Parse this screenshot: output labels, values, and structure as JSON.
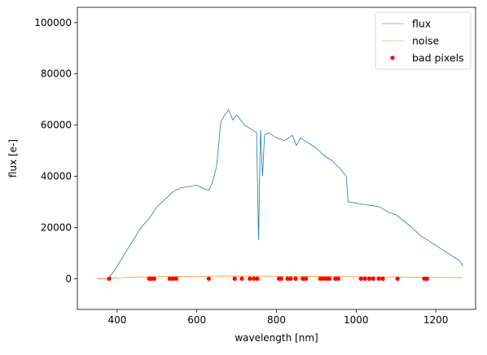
{
  "chart_data": {
    "type": "line",
    "title": "",
    "xlabel": "wavelength [nm]",
    "ylabel": "flux [e-]",
    "xlim": [
      300,
      1300
    ],
    "ylim": [
      -12000,
      106000
    ],
    "xticks": [
      400,
      600,
      800,
      1000,
      1200
    ],
    "yticks": [
      0,
      20000,
      40000,
      60000,
      80000,
      100000
    ],
    "xtick_labels": [
      "400",
      "600",
      "800",
      "1000",
      "1200"
    ],
    "ytick_labels": [
      "0",
      "20000",
      "40000",
      "60000",
      "80000",
      "100000"
    ],
    "grid": false,
    "legend_position": "top-right",
    "series": [
      {
        "name": "flux",
        "type": "line",
        "color": "#1f77b4",
        "x": [
          350,
          375,
          380,
          390,
          400,
          420,
          440,
          460,
          480,
          500,
          520,
          540,
          560,
          580,
          600,
          620,
          630,
          640,
          650,
          660,
          670,
          680,
          690,
          700,
          720,
          740,
          750,
          755,
          760,
          765,
          770,
          780,
          800,
          820,
          840,
          850,
          860,
          880,
          900,
          920,
          940,
          960,
          975,
          980,
          1000,
          1020,
          1040,
          1060,
          1080,
          1100,
          1120,
          1140,
          1160,
          1180,
          1200,
          1220,
          1240,
          1260,
          1268
        ],
        "y": [
          0,
          0,
          500,
          2500,
          5000,
          10000,
          15000,
          20000,
          23500,
          28000,
          31000,
          34000,
          35500,
          36000,
          36500,
          35000,
          34500,
          38000,
          44000,
          61000,
          64000,
          66000,
          62000,
          64000,
          60000,
          58000,
          57000,
          15000,
          58000,
          40000,
          56000,
          57000,
          55000,
          54000,
          56000,
          52000,
          55000,
          53000,
          51000,
          48000,
          46000,
          43000,
          40000,
          30000,
          29500,
          29000,
          28500,
          28000,
          26000,
          25000,
          22500,
          20000,
          17000,
          15000,
          13000,
          11000,
          9000,
          7000,
          5000
        ]
      },
      {
        "name": "noise",
        "type": "line",
        "color": "#ff7f0e",
        "x": [
          350,
          380,
          400,
          450,
          500,
          550,
          600,
          650,
          700,
          750,
          800,
          850,
          900,
          950,
          1000,
          1050,
          1100,
          1150,
          1200,
          1268
        ],
        "y": [
          0,
          0,
          300,
          700,
          800,
          900,
          950,
          1000,
          1000,
          1000,
          950,
          950,
          900,
          850,
          800,
          700,
          650,
          600,
          500,
          400
        ]
      },
      {
        "name": "bad pixels",
        "type": "scatter",
        "color": "#ff0000",
        "x": [
          380,
          480,
          486,
          493,
          532,
          540,
          548,
          630,
          695,
          713,
          733,
          743,
          752,
          806,
          812,
          828,
          836,
          848,
          866,
          874,
          910,
          918,
          926,
          933,
          948,
          955,
          1012,
          1022,
          1033,
          1043,
          1057,
          1067,
          1104,
          1171,
          1178
        ],
        "y": [
          0,
          0,
          0,
          0,
          0,
          0,
          0,
          0,
          0,
          0,
          0,
          0,
          0,
          0,
          0,
          0,
          0,
          0,
          0,
          0,
          0,
          0,
          0,
          0,
          0,
          0,
          0,
          0,
          0,
          0,
          0,
          0,
          0,
          0,
          0
        ]
      }
    ]
  }
}
